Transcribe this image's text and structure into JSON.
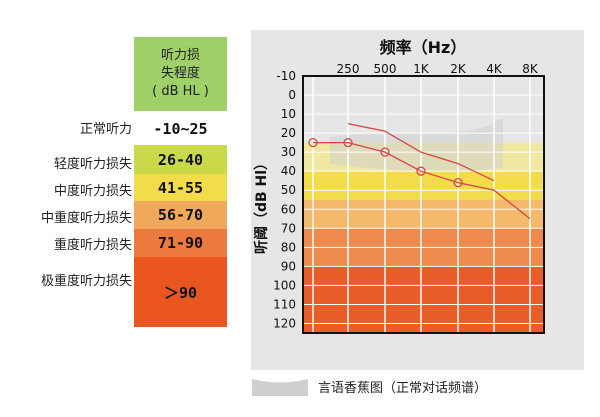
{
  "table": {
    "header_lines": [
      "听力损",
      "失程度",
      "( dB HL )"
    ],
    "rows": [
      {
        "label": "正常听力",
        "range": "-10~25",
        "color": "#ffffff"
      },
      {
        "label": "轻度听力损失",
        "range": "26-40",
        "color": "#c9d94a"
      },
      {
        "label": "中度听力损失",
        "range": "41-55",
        "color": "#f3dc4a"
      },
      {
        "label": "中重度听力损失",
        "range": "56-70",
        "color": "#f0a85a"
      },
      {
        "label": "重度听力损失",
        "range": "71-90",
        "color": "#ec7a3e"
      },
      {
        "label": "极重度听力损失",
        "range": "＞90",
        "color": "#e9561f"
      }
    ]
  },
  "chart_data": {
    "type": "line",
    "title": "频率（Hz）",
    "ylabel": "听阈（dB Hl）",
    "x_ticks": [
      "250",
      "500",
      "1K",
      "2K",
      "4K",
      "8K"
    ],
    "y_ticks": [
      "-10",
      "0",
      "10",
      "20",
      "30",
      "40",
      "50",
      "60",
      "70",
      "80",
      "90",
      "100",
      "110",
      "120"
    ],
    "ylim": [
      -10,
      125
    ],
    "bands": [
      {
        "from": 25,
        "to": 40,
        "color": "#f0e8a0"
      },
      {
        "from": 40,
        "to": 55,
        "color": "#f3dc4a"
      },
      {
        "from": 55,
        "to": 70,
        "color": "#f4b96a"
      },
      {
        "from": 70,
        "to": 90,
        "color": "#ef8a4e"
      },
      {
        "from": 90,
        "to": 125,
        "color": "#ea5d28"
      }
    ],
    "series": [
      {
        "kind": "audiogram",
        "x": [
          "125",
          "250",
          "500",
          "1K",
          "2K",
          "4K",
          "8K"
        ],
        "values": [
          25,
          25,
          30,
          40,
          46,
          50,
          65
        ],
        "markers": [
          true,
          true,
          true,
          true,
          true,
          false,
          false
        ]
      },
      {
        "kind": "upper-line",
        "x": [
          "250",
          "500",
          "1K",
          "2K",
          "4K"
        ],
        "values": [
          15,
          19,
          30,
          36,
          45
        ]
      }
    ],
    "colors": {
      "line": "#d64545",
      "banana": "#cfcfcf",
      "grid": "#ffffff"
    }
  },
  "caption": "言语香蕉图（正常对话频谱）"
}
